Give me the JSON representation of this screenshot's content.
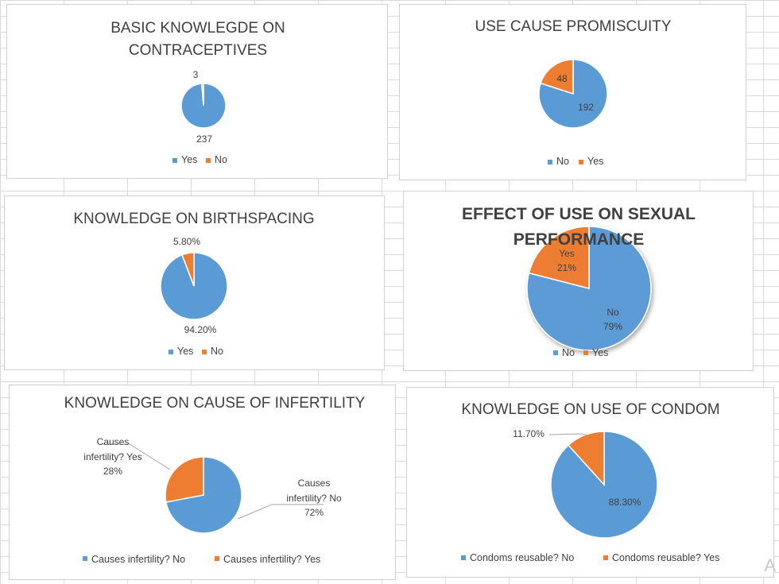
{
  "colors": {
    "blue": "#5b9bd5",
    "orange": "#ed7d31",
    "text": "#404040"
  },
  "corner_glyph": "A",
  "chart_data": [
    {
      "id": "c1",
      "type": "pie",
      "title_lines": [
        "BASIC KNOWLEGDE ON",
        "CONTRACEPTIVES"
      ],
      "slices": [
        {
          "name": "Yes",
          "value": 237,
          "label": "237"
        },
        {
          "name": "No",
          "value": 3,
          "label": "3"
        }
      ],
      "legend": [
        "Yes",
        "No"
      ]
    },
    {
      "id": "c2",
      "type": "pie",
      "title_lines": [
        "USE CAUSE PROMISCUITY"
      ],
      "slices": [
        {
          "name": "No",
          "value": 192,
          "label": "192"
        },
        {
          "name": "Yes",
          "value": 48,
          "label": "48"
        }
      ],
      "legend": [
        "No",
        "Yes"
      ]
    },
    {
      "id": "c3",
      "type": "pie",
      "title_lines": [
        "KNOWLEDGE ON BIRTHSPACING"
      ],
      "slices": [
        {
          "name": "Yes",
          "value": 94.2,
          "label": "94.20%"
        },
        {
          "name": "No",
          "value": 5.8,
          "label": "5.80%"
        }
      ],
      "legend": [
        "Yes",
        "No"
      ]
    },
    {
      "id": "c4",
      "type": "pie",
      "title_lines": [
        "EFFECT OF USE ON SEXUAL",
        "PERFORMANCE"
      ],
      "slices": [
        {
          "name": "No",
          "value": 79,
          "label_lines": [
            "No",
            "79%"
          ]
        },
        {
          "name": "Yes",
          "value": 21,
          "label_lines": [
            "Yes",
            "21%"
          ]
        }
      ],
      "legend": [
        "No",
        "Yes"
      ]
    },
    {
      "id": "c5",
      "type": "pie",
      "title_lines": [
        "KNOWLEDGE ON CAUSE OF INFERTILITY"
      ],
      "slices": [
        {
          "name": "Causes infertility? No",
          "value": 72,
          "label_lines": [
            "Causes",
            "infertility? No",
            "72%"
          ]
        },
        {
          "name": "Causes infertility? Yes",
          "value": 28,
          "label_lines": [
            "Causes",
            "infertility? Yes",
            "28%"
          ]
        }
      ],
      "legend": [
        "Causes infertility? No",
        "Causes infertility? Yes"
      ]
    },
    {
      "id": "c6",
      "type": "pie",
      "title_lines": [
        "KNOWLEDGE ON USE OF CONDOM"
      ],
      "slices": [
        {
          "name": "Condoms reusable? No",
          "value": 88.3,
          "label": "88.30%"
        },
        {
          "name": "Condoms reusable? Yes",
          "value": 11.7,
          "label": "11.70%"
        }
      ],
      "legend": [
        "Condoms reusable? No",
        "Condoms reusable? Yes"
      ]
    }
  ]
}
